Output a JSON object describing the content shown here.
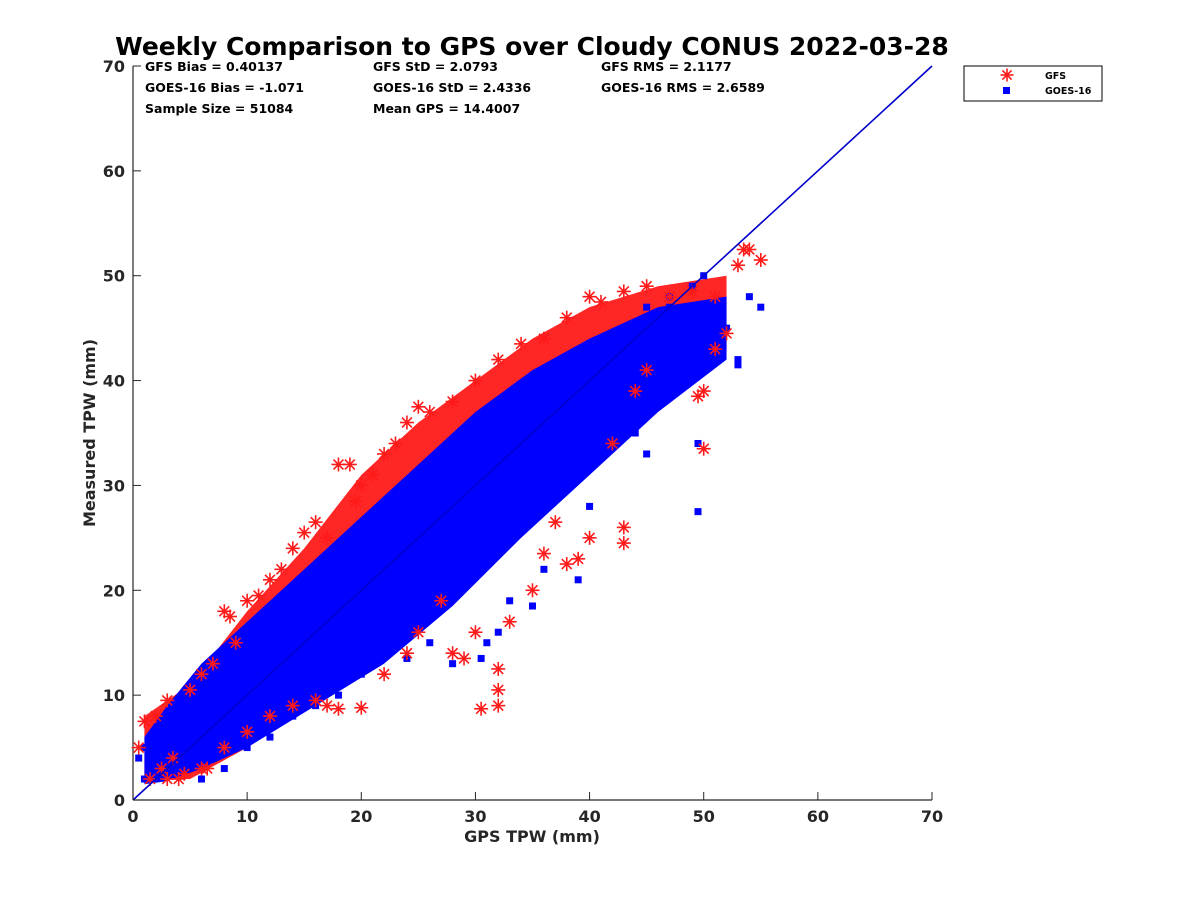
{
  "chart_data": {
    "type": "scatter",
    "title": "Weekly Comparison to GPS over Cloudy CONUS 2022-03-28",
    "xlabel": "GPS TPW (mm)",
    "ylabel": "Measured TPW (mm)",
    "xlim": [
      0,
      70
    ],
    "ylim": [
      0,
      70
    ],
    "xticks": [
      "0",
      "10",
      "20",
      "30",
      "40",
      "50",
      "60",
      "70"
    ],
    "yticks": [
      "0",
      "10",
      "20",
      "30",
      "40",
      "50",
      "60",
      "70"
    ],
    "grid": false,
    "legend_position": "outside top-right",
    "reference_line": {
      "type": "1:1",
      "color": "#0000cc"
    },
    "stats": [
      [
        "GFS Bias = 0.40137",
        "GFS StD = 2.0793",
        "GFS RMS = 2.1177"
      ],
      [
        "GOES-16 Bias = -1.071",
        "GOES-16 StD = 2.4336",
        "GOES-16 RMS = 2.6589"
      ],
      [
        "Sample Size = 51084",
        "Mean GPS = 14.4007",
        ""
      ]
    ],
    "series": [
      {
        "name": "GFS",
        "marker": "asterisk",
        "color": "#ff1a1a",
        "points": [
          [
            0.5,
            5
          ],
          [
            1,
            7.5
          ],
          [
            1.5,
            2
          ],
          [
            2,
            8
          ],
          [
            2.5,
            3
          ],
          [
            3,
            9.5
          ],
          [
            3.5,
            4
          ],
          [
            4,
            2
          ],
          [
            5,
            10.5
          ],
          [
            6,
            12
          ],
          [
            6.5,
            3
          ],
          [
            7,
            13
          ],
          [
            8,
            18
          ],
          [
            8.5,
            17.5
          ],
          [
            9,
            15
          ],
          [
            10,
            19
          ],
          [
            11,
            19.5
          ],
          [
            12,
            21
          ],
          [
            13,
            22
          ],
          [
            14,
            24
          ],
          [
            15,
            25.5
          ],
          [
            16,
            26.5
          ],
          [
            17,
            25
          ],
          [
            18,
            32
          ],
          [
            19,
            32
          ],
          [
            19.5,
            28.5
          ],
          [
            20,
            30
          ],
          [
            21,
            31
          ],
          [
            22,
            33
          ],
          [
            23,
            34
          ],
          [
            24,
            36
          ],
          [
            25,
            37.5
          ],
          [
            26,
            37
          ],
          [
            28,
            38
          ],
          [
            30,
            40
          ],
          [
            32,
            42
          ],
          [
            34,
            43.5
          ],
          [
            36,
            44
          ],
          [
            38,
            46
          ],
          [
            40,
            48
          ],
          [
            41,
            47.5
          ],
          [
            43,
            48.5
          ],
          [
            45,
            49
          ],
          [
            47,
            48
          ],
          [
            49,
            48.5
          ],
          [
            51,
            48
          ],
          [
            53,
            51
          ],
          [
            53.5,
            52.5
          ],
          [
            54,
            52.5
          ],
          [
            55,
            51.5
          ],
          [
            52,
            44.5
          ],
          [
            51,
            43
          ],
          [
            50,
            39
          ],
          [
            49.5,
            38.5
          ],
          [
            50,
            33.5
          ],
          [
            45,
            41
          ],
          [
            44,
            39
          ],
          [
            43,
            26
          ],
          [
            43,
            24.5
          ],
          [
            42,
            34
          ],
          [
            40,
            25
          ],
          [
            39,
            23
          ],
          [
            38,
            22.5
          ],
          [
            37,
            26.5
          ],
          [
            36,
            23.5
          ],
          [
            35,
            20
          ],
          [
            33,
            17
          ],
          [
            32,
            12.5
          ],
          [
            32,
            10.5
          ],
          [
            32,
            9
          ],
          [
            30.5,
            8.7
          ],
          [
            30,
            16
          ],
          [
            29,
            13.5
          ],
          [
            28,
            14
          ],
          [
            27,
            19
          ],
          [
            25,
            16
          ],
          [
            24,
            14
          ],
          [
            22,
            12
          ],
          [
            20,
            8.8
          ],
          [
            18,
            8.7
          ],
          [
            17,
            9
          ],
          [
            16,
            9.5
          ],
          [
            14,
            9
          ],
          [
            12,
            8
          ],
          [
            10,
            6.5
          ],
          [
            8,
            5
          ],
          [
            6,
            3
          ],
          [
            4.5,
            2.5
          ],
          [
            3,
            2
          ]
        ]
      },
      {
        "name": "GOES-16",
        "marker": "square",
        "color": "#0000ff",
        "points": [
          [
            0.5,
            4
          ],
          [
            1,
            2
          ],
          [
            1.5,
            6
          ],
          [
            2,
            4
          ],
          [
            3,
            7
          ],
          [
            4,
            3
          ],
          [
            5,
            8
          ],
          [
            6,
            5
          ],
          [
            7,
            10
          ],
          [
            8,
            7
          ],
          [
            9,
            12
          ],
          [
            10,
            9
          ],
          [
            11,
            14
          ],
          [
            12,
            11
          ],
          [
            13,
            17
          ],
          [
            14,
            12
          ],
          [
            15,
            18
          ],
          [
            16,
            14
          ],
          [
            17,
            20
          ],
          [
            18,
            16
          ],
          [
            19,
            22
          ],
          [
            20,
            18
          ],
          [
            21,
            24
          ],
          [
            22,
            20
          ],
          [
            23,
            25
          ],
          [
            24,
            22
          ],
          [
            25,
            28
          ],
          [
            26,
            24
          ],
          [
            27,
            30
          ],
          [
            28,
            27
          ],
          [
            29,
            32
          ],
          [
            30,
            29
          ],
          [
            31,
            34
          ],
          [
            32,
            31
          ],
          [
            33,
            36
          ],
          [
            34,
            33
          ],
          [
            35,
            38
          ],
          [
            36,
            35
          ],
          [
            37,
            40
          ],
          [
            38,
            37
          ],
          [
            39,
            42
          ],
          [
            40,
            39
          ],
          [
            41,
            44
          ],
          [
            42,
            41
          ],
          [
            43,
            45
          ],
          [
            44,
            42
          ],
          [
            45,
            47
          ],
          [
            46,
            44
          ],
          [
            47,
            48
          ],
          [
            48,
            46
          ],
          [
            49,
            49
          ],
          [
            50,
            50
          ],
          [
            51,
            47
          ],
          [
            52,
            45
          ],
          [
            53,
            42
          ],
          [
            53,
            41.5
          ],
          [
            54,
            48
          ],
          [
            55,
            47
          ],
          [
            49.5,
            34
          ],
          [
            49.5,
            27.5
          ],
          [
            45,
            33
          ],
          [
            44,
            35
          ],
          [
            40,
            28
          ],
          [
            39,
            21
          ],
          [
            36,
            22
          ],
          [
            35,
            18.5
          ],
          [
            33,
            19
          ],
          [
            32,
            16
          ],
          [
            31,
            15
          ],
          [
            30.5,
            13.5
          ],
          [
            28,
            13
          ],
          [
            26,
            15
          ],
          [
            24,
            13.5
          ],
          [
            22,
            14
          ],
          [
            20,
            12
          ],
          [
            18,
            10
          ],
          [
            16,
            9
          ],
          [
            14,
            8
          ],
          [
            12,
            6
          ],
          [
            10,
            5
          ],
          [
            8,
            3
          ],
          [
            6,
            2
          ],
          [
            1,
            5
          ],
          [
            2,
            6
          ],
          [
            3,
            4
          ],
          [
            4,
            6
          ],
          [
            5,
            4
          ],
          [
            7,
            9
          ],
          [
            9,
            8
          ],
          [
            11,
            10
          ],
          [
            13,
            13
          ],
          [
            15,
            15
          ],
          [
            17,
            17
          ],
          [
            19,
            19
          ],
          [
            21,
            21
          ],
          [
            23,
            23
          ],
          [
            25,
            25
          ],
          [
            27,
            27
          ],
          [
            29,
            29
          ],
          [
            31,
            31
          ],
          [
            33,
            33
          ],
          [
            35,
            35
          ],
          [
            37,
            37
          ],
          [
            39,
            39
          ],
          [
            41,
            41
          ],
          [
            43,
            43
          ],
          [
            45,
            45
          ],
          [
            47,
            47
          ]
        ]
      }
    ]
  }
}
